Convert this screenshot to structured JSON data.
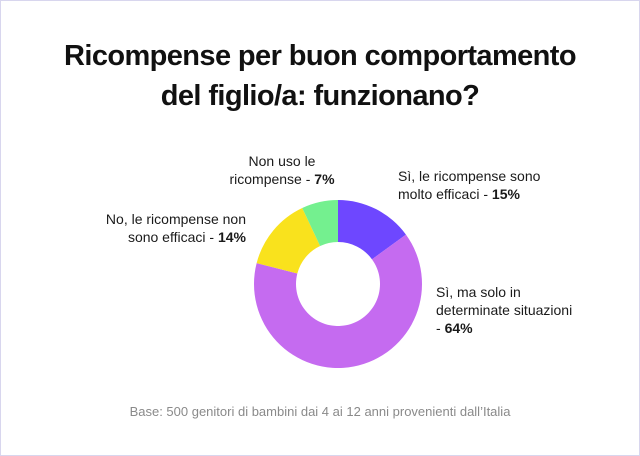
{
  "title_line1": "Ricompense per buon comportamento",
  "title_line2": "del figlio/a: funzionano?",
  "footnote": "Base: 500 genitori di bambini dai 4 ai 12 anni provenienti dall’Italia",
  "chart_data": {
    "type": "pie",
    "variant": "donut",
    "slices": [
      {
        "label_lines": [
          "Sì, le ricompense sono",
          "molto efficaci"
        ],
        "pct_text": "15%",
        "value": 15,
        "color": "#6e47ff"
      },
      {
        "label_lines": [
          "Sì, ma solo in",
          "determinate situazioni",
          ""
        ],
        "pct_text": "64%",
        "value": 64,
        "color": "#c56bf0"
      },
      {
        "label_lines": [
          "No, le ricompense non",
          "sono efficaci"
        ],
        "pct_text": "14%",
        "value": 14,
        "color": "#f9e21d"
      },
      {
        "label_lines": [
          "Non uso le",
          "ricompense"
        ],
        "pct_text": "7%",
        "value": 7,
        "color": "#74f08f"
      }
    ]
  }
}
